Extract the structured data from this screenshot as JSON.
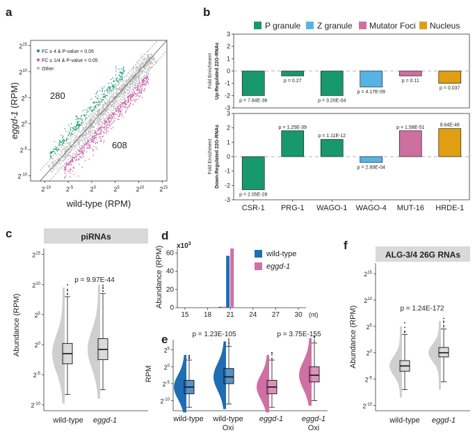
{
  "colors": {
    "up": "#1a9e77",
    "down": "#c966a8",
    "grey": "#b9b9b9",
    "darkgrey": "#8a8a8a",
    "wt": "#1f6db2",
    "eggd": "#cf6fa4",
    "p": "#17986d",
    "z": "#58b3e5",
    "mut": "#cd6f9f",
    "nuc": "#e09e12",
    "headerbg": "#d9d9d9"
  },
  "chart_data": [
    {
      "panel": "a",
      "type": "scatter",
      "xlabel": "wild-type (RPM)",
      "ylabel_italic": "eggd-1",
      "ylabel_rest": " (RPM)",
      "xticks": [
        {
          "b": "2",
          "e": "-10",
          "v": -10
        },
        {
          "b": "2",
          "e": "-5",
          "v": -5
        },
        {
          "b": "2",
          "e": "0",
          "v": 0
        },
        {
          "b": "2",
          "e": "5",
          "v": 5
        },
        {
          "b": "2",
          "e": "10",
          "v": 10
        },
        {
          "b": "2",
          "e": "15",
          "v": 15
        }
      ],
      "yticks": [
        {
          "b": "2",
          "e": "15",
          "v": 15
        },
        {
          "b": "2",
          "e": "10",
          "v": 10
        },
        {
          "b": "2",
          "e": "5",
          "v": 5
        },
        {
          "b": "2",
          "e": "0",
          "v": 0
        },
        {
          "b": "2",
          "e": "-5",
          "v": -5
        },
        {
          "b": "2",
          "e": "-10",
          "v": -10
        }
      ],
      "xlim": [
        -13,
        16
      ],
      "ylim": [
        -11,
        16
      ],
      "legend": [
        "FC ≥ 4 & P-value < 0.05",
        "FC ≤ 1/4 & P-value < 0.05",
        "Other"
      ],
      "up_count": "280",
      "down_count": "608"
    },
    {
      "panel": "b",
      "type": "bar",
      "legend": [
        "P granule",
        "Z granule",
        "Mutator Foci",
        "Nucleus"
      ],
      "categories": [
        "CSR-1",
        "PRG-1",
        "WAGO-1",
        "WAGO-4",
        "MUT-16",
        "HRDE-1"
      ],
      "groups": [
        "P granule",
        "P granule",
        "P granule",
        "Z granule",
        "Mutator Foci",
        "Nucleus"
      ],
      "ylabel_top": "Fold Enrichment",
      "top_ylabel": "Up-Regulated 22G-RNAs",
      "bottom_ylabel": "Down-Regulated 22G-RNAs",
      "ylim": [
        -3,
        3
      ],
      "yticks": [
        "3",
        "2",
        "1",
        "0",
        "-1",
        "-2",
        "-3"
      ],
      "top_values": [
        -2.0,
        -0.4,
        -2.0,
        -1.3,
        -0.4,
        -1.0
      ],
      "top_pvals": [
        "p = 7.84E-36",
        "p = 0.27",
        "p = 3.20E-04",
        "p = 4.17E-09",
        "p = 0.11",
        "p = 0.037"
      ],
      "bottom_values": [
        -2.3,
        1.8,
        1.2,
        -0.4,
        1.8,
        1.95
      ],
      "bottom_pvals": [
        "p = 2.05E-28",
        "p = 1.25E-39",
        "p = 1.11E-12",
        "p = 2.89E-04",
        "p = 1.58E-51",
        "9.64E-46"
      ]
    },
    {
      "panel": "c",
      "type": "violin-box",
      "title": "piRNAs",
      "ylabel": "Abundance (RPM)",
      "pval": "p = 9.97E-44",
      "categories": [
        "wild-type",
        "eggd-1"
      ],
      "yticks": [
        {
          "b": "2",
          "e": "15",
          "v": 15
        },
        {
          "b": "2",
          "e": "10",
          "v": 10
        },
        {
          "b": "2",
          "e": "5",
          "v": 5
        },
        {
          "b": "2",
          "e": "0",
          "v": 0
        },
        {
          "b": "2",
          "e": "-5",
          "v": -5
        },
        {
          "b": "2",
          "e": "-10",
          "v": -10
        }
      ],
      "ylim": [
        -11,
        16
      ],
      "boxes": [
        {
          "q1": -3.2,
          "median": -1.5,
          "q3": 0.2,
          "lo": -8.3,
          "hi": 8.0
        },
        {
          "q1": -2.5,
          "median": -0.8,
          "q3": 1.0,
          "lo": -7.5,
          "hi": 8.5
        }
      ]
    },
    {
      "panel": "d",
      "type": "bar",
      "ylabel": "Abundance (RPM)",
      "scale_base": "x10",
      "scale_exp": "3",
      "xunit": "(nt)",
      "xticks": [
        "15",
        "18",
        "21",
        "24",
        "27",
        "30"
      ],
      "yticks": [
        "60",
        "40",
        "20",
        "0"
      ],
      "ylim": [
        0,
        65
      ],
      "xlim": [
        14,
        31
      ],
      "series": [
        {
          "name": "wild-type",
          "x": [
            20,
            21
          ],
          "values": [
            1,
            57
          ]
        },
        {
          "name": "eggd-1",
          "x": [
            20,
            21
          ],
          "values": [
            1,
            65
          ]
        }
      ]
    },
    {
      "panel": "e",
      "type": "violin-box",
      "ylabel": "RPM",
      "pvals": [
        "p = 1.23E-105",
        "p = 3.75E-155"
      ],
      "labels": [
        "wild-type",
        "wild-type",
        "eggd-1",
        "eggd-1"
      ],
      "sublabels": [
        "",
        "Oxi",
        "",
        "Oxi"
      ],
      "yticks": [
        {
          "b": "2",
          "e": "5",
          "v": 5
        },
        {
          "b": "2",
          "e": "0",
          "v": 0
        },
        {
          "b": "2",
          "e": "-5",
          "v": -5
        },
        {
          "b": "2",
          "e": "-10",
          "v": -10
        }
      ],
      "ylim": [
        -13,
        8
      ],
      "boxes": [
        {
          "q1": -8.0,
          "median": -6.0,
          "q3": -4.0,
          "lo": -12,
          "hi": 2
        },
        {
          "q1": -5.0,
          "median": -3.0,
          "q3": -0.5,
          "lo": -11,
          "hi": 6
        },
        {
          "q1": -8.0,
          "median": -6.0,
          "q3": -4.0,
          "lo": -12,
          "hi": 2
        },
        {
          "q1": -4.5,
          "median": -2.5,
          "q3": 0,
          "lo": -10,
          "hi": 7
        }
      ]
    },
    {
      "panel": "f",
      "type": "violin-box",
      "title": "ALG-3/4 26G RNAs",
      "ylabel": "Abundance (RPM)",
      "pval": "p = 1.24E-172",
      "categories": [
        "wild-type",
        "eggd-1"
      ],
      "yticks": [
        {
          "b": "2",
          "e": "15",
          "v": 15
        },
        {
          "b": "2",
          "e": "10",
          "v": 10
        },
        {
          "b": "2",
          "e": "5",
          "v": 5
        },
        {
          "b": "2",
          "e": "0",
          "v": 0
        },
        {
          "b": "2",
          "e": "-5",
          "v": -5
        },
        {
          "b": "2",
          "e": "-10",
          "v": -10
        }
      ],
      "ylim": [
        -11,
        17
      ],
      "boxes": [
        {
          "q1": -3.5,
          "median": -2.5,
          "q3": -1.5,
          "lo": -7.0,
          "hi": 3.5
        },
        {
          "q1": -0.8,
          "median": 0,
          "q3": 1.0,
          "lo": -5.5,
          "hi": 4.5
        }
      ]
    }
  ]
}
